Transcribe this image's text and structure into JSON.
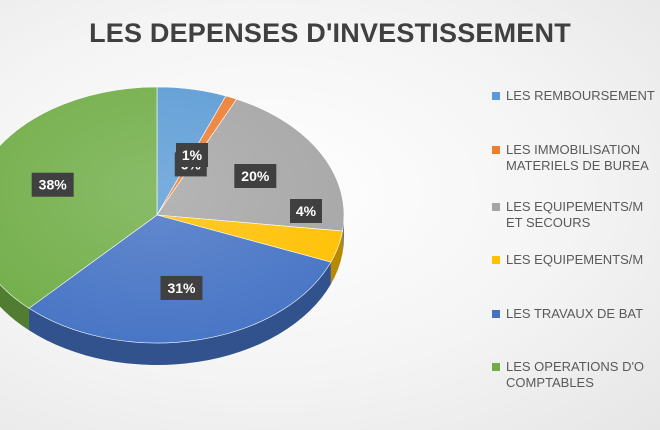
{
  "chart_data": {
    "type": "pie",
    "title": "LES DEPENSES D'INVESTISSEMENT",
    "slices": [
      {
        "label": "LES REMBOURSEMENT",
        "value": 6,
        "text": "6%",
        "color": "#5b9bd5"
      },
      {
        "label": "LES IMMOBILISATION\nMATERIELS DE BUREA",
        "value": 1,
        "text": "1%",
        "color": "#ed7d31"
      },
      {
        "label": "LES EQUIPEMENTS/M\nET SECOURS",
        "value": 20,
        "text": "20%",
        "color": "#a5a5a5"
      },
      {
        "label": "LES EQUIPEMENTS/M",
        "value": 4,
        "text": "4%",
        "color": "#ffc000"
      },
      {
        "label": "LES TRAVAUX DE BAT",
        "value": 31,
        "text": "31%",
        "color": "#4472c4"
      },
      {
        "label": "LES OPERATIONS D'O\nCOMPTABLES",
        "value": 38,
        "text": "38%",
        "color": "#70ad47"
      }
    ],
    "legend_position": "right"
  }
}
